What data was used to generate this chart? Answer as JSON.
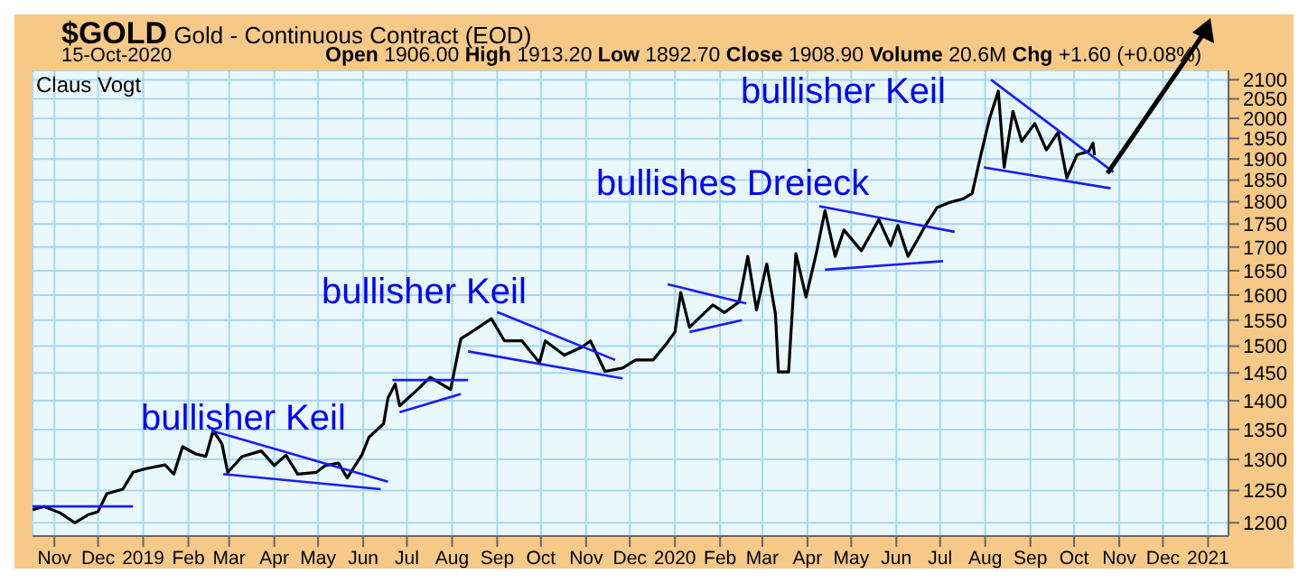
{
  "chart_data": {
    "type": "line",
    "title": "$GOLD Gold - Continuous Contract (EOD)",
    "subtitle": "15-Oct-2020",
    "annotations": [
      "Open 1906.00 High 1913.20 Low 1892.70 Close 1908.90 Volume 20.6M Chg +1.60 (+0.08%)",
      "Claus Vogt",
      "bullisher Keil",
      "bullisher Keil",
      "bullishes Dreieck",
      "bullisher Keil"
    ],
    "log": true,
    "grid": true,
    "marker": "none",
    "line_style": "solid",
    "xlim": [
      "2018-10-17",
      "2021-01-15"
    ],
    "ylim": [
      1180,
      2125
    ],
    "xticks": [
      {
        "value": "2018-11-01",
        "label": "Nov"
      },
      {
        "value": "2018-12-01",
        "label": "Dec"
      },
      {
        "value": "2019-01-01",
        "label": "2019"
      },
      {
        "value": "2019-02-01",
        "label": "Feb"
      },
      {
        "value": "2019-03-01",
        "label": "Mar"
      },
      {
        "value": "2019-04-01",
        "label": "Apr"
      },
      {
        "value": "2019-05-01",
        "label": "May"
      },
      {
        "value": "2019-06-01",
        "label": "Jun"
      },
      {
        "value": "2019-07-01",
        "label": "Jul"
      },
      {
        "value": "2019-08-01",
        "label": "Aug"
      },
      {
        "value": "2019-09-01",
        "label": "Sep"
      },
      {
        "value": "2019-10-01",
        "label": "Oct"
      },
      {
        "value": "2019-11-01",
        "label": "Nov"
      },
      {
        "value": "2019-12-01",
        "label": "Dec"
      },
      {
        "value": "2020-01-01",
        "label": "2020"
      },
      {
        "value": "2020-02-01",
        "label": "Feb"
      },
      {
        "value": "2020-03-01",
        "label": "Mar"
      },
      {
        "value": "2020-04-01",
        "label": "Apr"
      },
      {
        "value": "2020-05-01",
        "label": "May"
      },
      {
        "value": "2020-06-01",
        "label": "Jun"
      },
      {
        "value": "2020-07-01",
        "label": "Jul"
      },
      {
        "value": "2020-08-01",
        "label": "Aug"
      },
      {
        "value": "2020-09-01",
        "label": "Sep"
      },
      {
        "value": "2020-10-01",
        "label": "Oct"
      },
      {
        "value": "2020-11-01",
        "label": "Nov"
      },
      {
        "value": "2020-12-01",
        "label": "Dec"
      },
      {
        "value": "2021-01-01",
        "label": "2021"
      }
    ],
    "yticks": [
      1200,
      1250,
      1300,
      1350,
      1400,
      1450,
      1500,
      1550,
      1600,
      1650,
      1700,
      1750,
      1800,
      1850,
      1900,
      1950,
      2000,
      2050,
      2100
    ],
    "series": [
      {
        "color": "#000000",
        "x": [
          "2018-10-17",
          "2018-10-25",
          "2018-11-05",
          "2018-11-15",
          "2018-11-24",
          "2018-12-01",
          "2018-12-07",
          "2018-12-18",
          "2018-12-25",
          "2019-01-03",
          "2019-01-16",
          "2019-01-22",
          "2019-01-28",
          "2019-02-06",
          "2019-02-13",
          "2019-02-18",
          "2019-02-24",
          "2019-02-28",
          "2019-03-10",
          "2019-03-23",
          "2019-04-01",
          "2019-04-09",
          "2019-04-17",
          "2019-04-30",
          "2019-05-06",
          "2019-05-15",
          "2019-05-21",
          "2019-05-31",
          "2019-06-05",
          "2019-06-15",
          "2019-06-18",
          "2019-06-23",
          "2019-06-26",
          "2019-07-05",
          "2019-07-17",
          "2019-07-31",
          "2019-08-07",
          "2019-08-16",
          "2019-08-28",
          "2019-09-06",
          "2019-09-18",
          "2019-09-30",
          "2019-10-04",
          "2019-10-17",
          "2019-10-29",
          "2019-11-04",
          "2019-11-14",
          "2019-11-26",
          "2019-12-05",
          "2019-12-17",
          "2019-12-26",
          "2020-01-01",
          "2020-01-05",
          "2020-01-11",
          "2020-01-27",
          "2020-02-04",
          "2020-02-14",
          "2020-02-20",
          "2020-02-26",
          "2020-03-04",
          "2020-03-10",
          "2020-03-12",
          "2020-03-19",
          "2020-03-24",
          "2020-03-31",
          "2020-04-07",
          "2020-04-13",
          "2020-04-20",
          "2020-04-26",
          "2020-05-08",
          "2020-05-20",
          "2020-05-28",
          "2020-06-02",
          "2020-06-09",
          "2020-06-21",
          "2020-06-29",
          "2020-07-08",
          "2020-07-17",
          "2020-07-23",
          "2020-07-29",
          "2020-08-04",
          "2020-08-10",
          "2020-08-14",
          "2020-08-20",
          "2020-08-26",
          "2020-09-04",
          "2020-09-12",
          "2020-09-20",
          "2020-09-26",
          "2020-10-03",
          "2020-10-11",
          "2020-10-14",
          "2020-10-15"
        ],
        "values": [
          1220,
          1225,
          1215,
          1200,
          1212,
          1217,
          1245,
          1252,
          1279,
          1285,
          1291,
          1276,
          1321,
          1309,
          1305,
          1348,
          1326,
          1279,
          1305,
          1314,
          1290,
          1307,
          1276,
          1279,
          1290,
          1294,
          1270,
          1307,
          1337,
          1360,
          1405,
          1430,
          1391,
          1412,
          1442,
          1420,
          1514,
          1530,
          1553,
          1510,
          1510,
          1469,
          1510,
          1483,
          1498,
          1510,
          1453,
          1459,
          1474,
          1474,
          1504,
          1527,
          1605,
          1536,
          1580,
          1565,
          1586,
          1680,
          1570,
          1664,
          1562,
          1452,
          1452,
          1686,
          1596,
          1686,
          1780,
          1680,
          1737,
          1692,
          1760,
          1703,
          1747,
          1680,
          1747,
          1787,
          1799,
          1807,
          1819,
          1910,
          2000,
          2070,
          1880,
          2018,
          1943,
          1987,
          1922,
          1965,
          1855,
          1910,
          1918,
          1939,
          1909
        ]
      },
      {
        "color": "#1a1aff",
        "x": [
          "2018-10-17",
          "2018-12-25"
        ],
        "values": [
          1225,
          1225
        ]
      },
      {
        "color": "#1a1aff",
        "x": [
          "2019-02-17",
          "2019-06-18"
        ],
        "values": [
          1348,
          1264
        ]
      },
      {
        "color": "#1a1aff",
        "x": [
          "2019-02-25",
          "2019-06-13"
        ],
        "values": [
          1276,
          1252
        ]
      },
      {
        "color": "#1a1aff",
        "x": [
          "2019-06-21",
          "2019-08-12"
        ],
        "values": [
          1437,
          1437
        ]
      },
      {
        "color": "#1a1aff",
        "x": [
          "2019-06-26",
          "2019-08-07"
        ],
        "values": [
          1380,
          1412
        ]
      },
      {
        "color": "#1a1aff",
        "x": [
          "2019-09-01",
          "2019-11-21"
        ],
        "values": [
          1566,
          1474
        ]
      },
      {
        "color": "#1a1aff",
        "x": [
          "2019-08-12",
          "2019-11-26"
        ],
        "values": [
          1490,
          1440
        ]
      },
      {
        "color": "#1a1aff",
        "x": [
          "2019-12-27",
          "2020-02-19"
        ],
        "values": [
          1622,
          1583
        ]
      },
      {
        "color": "#1a1aff",
        "x": [
          "2020-01-11",
          "2020-02-16"
        ],
        "values": [
          1527,
          1550
        ]
      },
      {
        "color": "#1a1aff",
        "x": [
          "2020-04-09",
          "2020-07-11"
        ],
        "values": [
          1790,
          1733
        ]
      },
      {
        "color": "#1a1aff",
        "x": [
          "2020-04-13",
          "2020-07-03"
        ],
        "values": [
          1652,
          1670
        ]
      },
      {
        "color": "#1a1aff",
        "x": [
          "2020-08-05",
          "2020-10-28"
        ],
        "values": [
          2100,
          1869
        ]
      },
      {
        "color": "#1a1aff",
        "x": [
          "2020-07-31",
          "2020-10-26"
        ],
        "values": [
          1880,
          1831
        ]
      }
    ]
  }
}
